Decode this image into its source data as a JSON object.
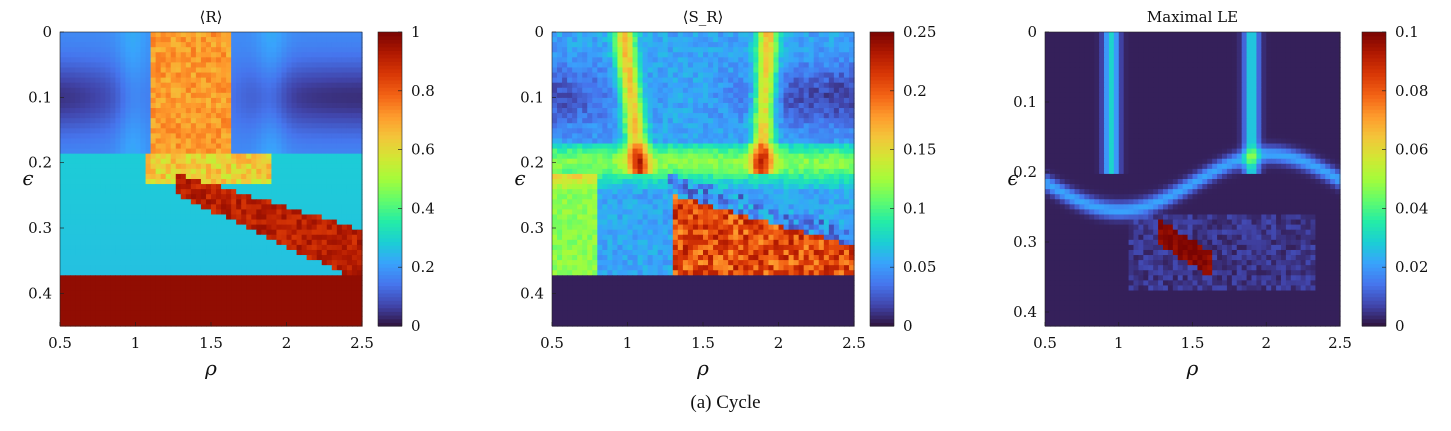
{
  "caption": "(a) Cycle",
  "colormap_stops": [
    "#30123b",
    "#4145ab",
    "#4675ed",
    "#39a2fc",
    "#1bcfd4",
    "#24eca6",
    "#61fc6c",
    "#a4fc3b",
    "#d1e834",
    "#f3c63a",
    "#fe9b2d",
    "#f36315",
    "#d93806",
    "#b11901",
    "#7a0402"
  ],
  "chart_data": [
    {
      "type": "heatmap",
      "title": "⟨R⟩",
      "xlabel": "ρ",
      "ylabel": "ϵ",
      "xlim": [
        0.5,
        2.5
      ],
      "ylim": [
        0,
        0.45
      ],
      "xticks": [
        "0.5",
        "1",
        "1.5",
        "2",
        "2.5"
      ],
      "yticks": [
        "0",
        "0.1",
        "0.2",
        "0.3",
        "0.4"
      ],
      "colorbar": {
        "range": [
          0,
          1
        ],
        "ticks": [
          "0",
          "0.2",
          "0.4",
          "0.6",
          "0.8",
          "1"
        ]
      },
      "regions": [
        {
          "name": "upper-left dip near ϵ=0.1",
          "value": 0.08
        },
        {
          "name": "central plume ρ≈1.1–1.6, ϵ<0.2",
          "value": 0.68
        },
        {
          "name": "lower wedge ρ≈1.3–2.5, ϵ≈0.21–0.36",
          "value": 0.88
        },
        {
          "name": "large-ϵ region ϵ>0.37",
          "value": 0.97
        }
      ]
    },
    {
      "type": "heatmap",
      "title": "⟨S_R⟩",
      "xlabel": "ρ",
      "ylabel": "ϵ",
      "xlim": [
        0.5,
        2.5
      ],
      "ylim": [
        0,
        0.45
      ],
      "xticks": [
        "0.5",
        "1",
        "1.5",
        "2",
        "2.5"
      ],
      "yticks": [
        "0",
        "0.1",
        "0.2",
        "0.3",
        "0.4"
      ],
      "colorbar": {
        "range": [
          0,
          0.25
        ],
        "ticks": [
          "0",
          "0.05",
          "0.1",
          "0.15",
          "0.2",
          "0.25"
        ]
      },
      "regions": [
        {
          "name": "background",
          "value": 0.05
        },
        {
          "name": "vertical streaks at ρ≈1 and ρ≈1.9",
          "value": 0.16
        },
        {
          "name": "lower diagonal band",
          "value": 0.22
        },
        {
          "name": "large-ϵ region ϵ>0.37",
          "value": 0.0
        }
      ]
    },
    {
      "type": "heatmap",
      "title": "Maximal LE",
      "xlabel": "ρ",
      "ylabel": "ϵ",
      "xlim": [
        0.5,
        2.5
      ],
      "ylim": [
        0,
        0.42
      ],
      "xticks": [
        "0.5",
        "1",
        "1.5",
        "2",
        "2.5"
      ],
      "yticks": [
        "0",
        "0.1",
        "0.2",
        "0.3",
        "0.4"
      ],
      "colorbar": {
        "range": [
          0,
          0.1
        ],
        "ticks": [
          "0",
          "0.02",
          "0.04",
          "0.06",
          "0.08",
          "0.1"
        ]
      },
      "regions": [
        {
          "name": "background",
          "value": 0.0
        },
        {
          "name": "vertical streaks at ρ≈0.95 and ρ≈1.9",
          "value": 0.025
        },
        {
          "name": "curved band ϵ≈0.2–0.23",
          "value": 0.02
        },
        {
          "name": "hot spot ρ≈1.3–1.6, ϵ≈0.29–0.34",
          "value": 0.1
        }
      ]
    }
  ]
}
